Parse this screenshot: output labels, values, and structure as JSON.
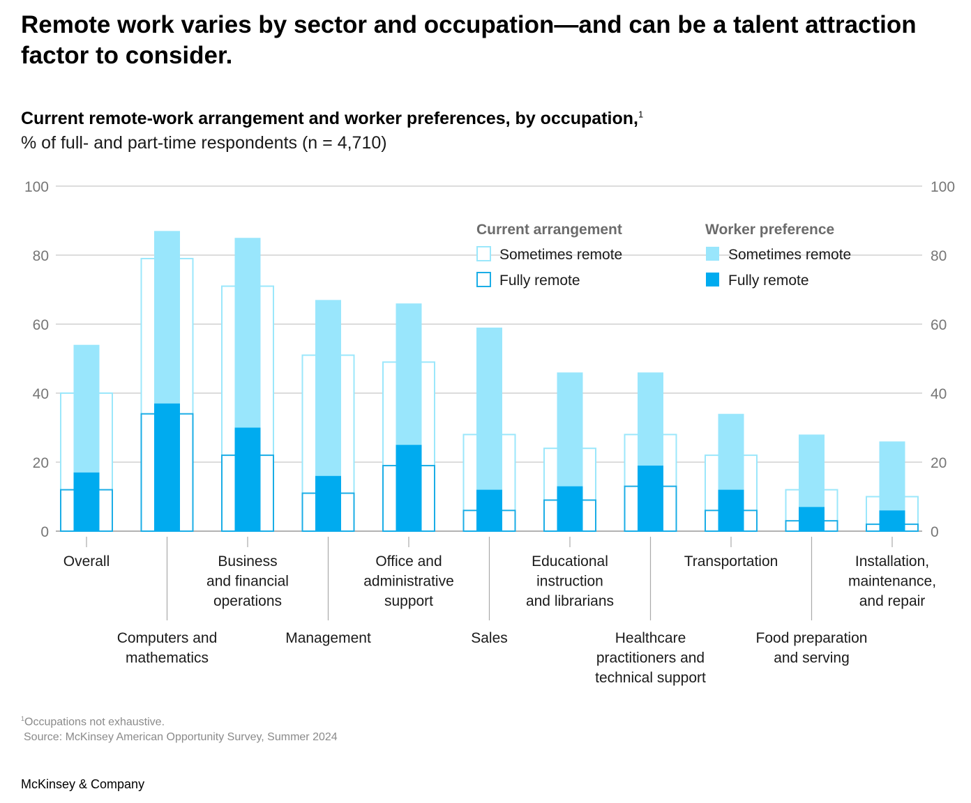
{
  "header": {
    "title": "Remote work varies by sector and occupation—and can be a talent attraction factor to consider.",
    "subtitle": "Current remote-work arrangement and worker preferences, by occupation,",
    "subtitle_footnote_marker": "1",
    "unit": "% of full- and part-time respondents (n = 4,710)"
  },
  "colors": {
    "current_sometimes_outline": "#9be7fb",
    "current_fully_outline": "#1aade6",
    "pref_sometimes_fill": "#99e6fc",
    "pref_fully_fill": "#00abef",
    "gridline": "#d0d0d0",
    "axis": "#999999"
  },
  "chart_data": {
    "type": "bar",
    "title": "Current remote-work arrangement and worker preferences, by occupation",
    "xlabel": "",
    "ylabel": "% of full- and part-time respondents (n = 4,710)",
    "ylim": [
      0,
      100
    ],
    "yticks": [
      0,
      20,
      40,
      60,
      80,
      100
    ],
    "grid": true,
    "legend_position": "top-right",
    "legend": {
      "groups": [
        {
          "title": "Current arrangement",
          "items": [
            {
              "label": "Sometimes remote",
              "style": "outline-light"
            },
            {
              "label": "Fully remote",
              "style": "outline-dark"
            }
          ]
        },
        {
          "title": "Worker preference",
          "items": [
            {
              "label": "Sometimes remote",
              "style": "fill-light"
            },
            {
              "label": "Fully remote",
              "style": "fill-dark"
            }
          ]
        }
      ]
    },
    "categories": [
      "Overall",
      "Computers and mathematics",
      "Business and financial operations",
      "Management",
      "Office and administrative support",
      "Sales",
      "Educational instruction and librarians",
      "Healthcare practitioners and technical support",
      "Transportation",
      "Food preparation and serving",
      "Installation, maintenance, and repair"
    ],
    "category_label_lines": [
      [
        "Overall"
      ],
      [
        "Computers and",
        "mathematics"
      ],
      [
        "Business",
        "and financial",
        "operations"
      ],
      [
        "Management"
      ],
      [
        "Office and",
        "administrative",
        "support"
      ],
      [
        "Sales"
      ],
      [
        "Educational",
        "instruction",
        "and librarians"
      ],
      [
        "Healthcare",
        "practitioners and",
        "technical support"
      ],
      [
        "Transportation"
      ],
      [
        "Food preparation",
        "and serving"
      ],
      [
        "Installation,",
        "maintenance,",
        "and repair"
      ]
    ],
    "series": [
      {
        "name": "Current arrangement – Sometimes remote (total incl. fully)",
        "values": [
          40,
          79,
          71,
          51,
          49,
          28,
          24,
          28,
          22,
          12,
          10
        ]
      },
      {
        "name": "Current arrangement – Fully remote",
        "values": [
          12,
          34,
          22,
          11,
          19,
          6,
          9,
          13,
          6,
          3,
          2
        ]
      },
      {
        "name": "Worker preference – Sometimes remote (total incl. fully)",
        "values": [
          54,
          87,
          85,
          67,
          66,
          59,
          46,
          46,
          34,
          28,
          26
        ]
      },
      {
        "name": "Worker preference – Fully remote",
        "values": [
          17,
          37,
          30,
          16,
          25,
          12,
          13,
          19,
          12,
          7,
          6
        ]
      }
    ]
  },
  "footer": {
    "footnote_marker": "1",
    "footnote": "Occupations not exhaustive.",
    "source": "Source: McKinsey American Opportunity Survey, Summer 2024",
    "brand": "McKinsey & Company"
  }
}
